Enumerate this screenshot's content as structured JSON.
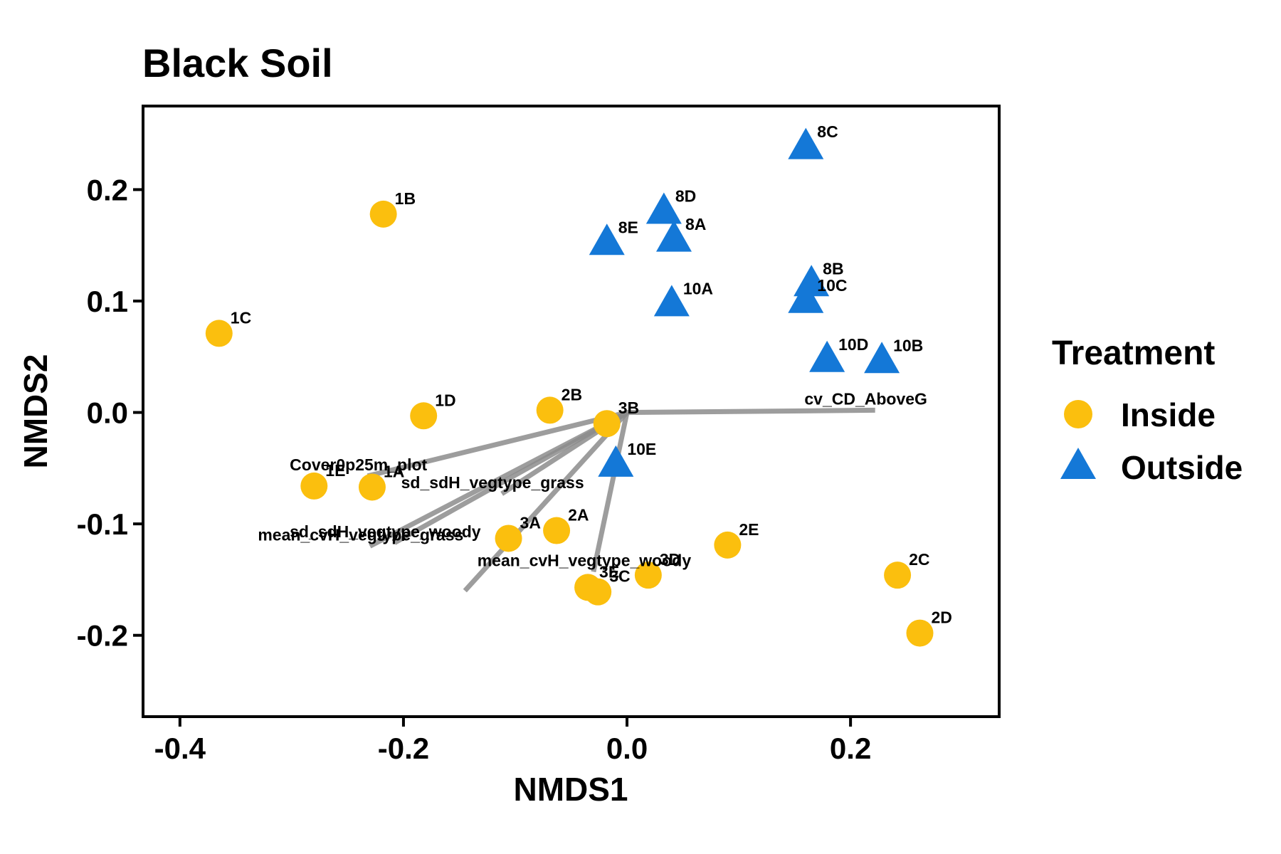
{
  "chart_data": {
    "type": "scatter",
    "title": "Black Soil",
    "xlabel": "NMDS1",
    "ylabel": "NMDS2",
    "xlim": [
      -0.433,
      0.333
    ],
    "ylim": [
      -0.273,
      0.275
    ],
    "xticks": [
      -0.4,
      -0.2,
      0.0,
      0.2
    ],
    "xtick_labels": [
      "-0.4",
      "-0.2",
      "0.0",
      "0.2"
    ],
    "yticks": [
      -0.2,
      -0.1,
      0.0,
      0.1,
      0.2
    ],
    "ytick_labels": [
      "-0.2",
      "-0.1",
      "0.0",
      "0.1",
      "0.2"
    ],
    "grid": false,
    "colors": {
      "Inside": "#FBBF0E",
      "Outside": "#1478D7",
      "vector": "#8C8C8C"
    },
    "legend": {
      "title": "Treatment",
      "position": "right",
      "entries": [
        {
          "label": "Inside",
          "shape": "circle"
        },
        {
          "label": "Outside",
          "shape": "triangle"
        }
      ]
    },
    "series": [
      {
        "name": "Inside",
        "shape": "circle",
        "points": [
          {
            "label": "1B",
            "x": -0.218,
            "y": 0.178
          },
          {
            "label": "1C",
            "x": -0.365,
            "y": 0.071
          },
          {
            "label": "1D",
            "x": -0.182,
            "y": -0.003
          },
          {
            "label": "1E",
            "x": -0.28,
            "y": -0.066
          },
          {
            "label": "1A",
            "x": -0.228,
            "y": -0.067
          },
          {
            "label": "2B",
            "x": -0.069,
            "y": 0.002
          },
          {
            "label": "3B",
            "x": -0.018,
            "y": -0.01
          },
          {
            "label": "3A",
            "x": -0.106,
            "y": -0.113
          },
          {
            "label": "2A",
            "x": -0.063,
            "y": -0.106
          },
          {
            "label": "3D",
            "x": 0.019,
            "y": -0.146
          },
          {
            "label": "3E",
            "x": -0.035,
            "y": -0.157
          },
          {
            "label": "3C",
            "x": -0.026,
            "y": -0.161
          },
          {
            "label": "2E",
            "x": 0.09,
            "y": -0.119
          },
          {
            "label": "2C",
            "x": 0.242,
            "y": -0.146
          },
          {
            "label": "2D",
            "x": 0.262,
            "y": -0.198
          }
        ]
      },
      {
        "name": "Outside",
        "shape": "triangle",
        "points": [
          {
            "label": "8C",
            "x": 0.16,
            "y": 0.238
          },
          {
            "label": "8D",
            "x": 0.033,
            "y": 0.18
          },
          {
            "label": "8E",
            "x": -0.018,
            "y": 0.152
          },
          {
            "label": "8A",
            "x": 0.042,
            "y": 0.155
          },
          {
            "label": "10A",
            "x": 0.04,
            "y": 0.097
          },
          {
            "label": "8B",
            "x": 0.165,
            "y": 0.115
          },
          {
            "label": "10C",
            "x": 0.16,
            "y": 0.1
          },
          {
            "label": "10D",
            "x": 0.179,
            "y": 0.047
          },
          {
            "label": "10B",
            "x": 0.228,
            "y": 0.046
          },
          {
            "label": "10E",
            "x": -0.01,
            "y": -0.047
          }
        ]
      }
    ],
    "vectors": [
      {
        "label": "cv_CD_AboveG",
        "x": 0.222,
        "y": 0.002
      },
      {
        "label": "Cover0p25m_plot",
        "x": -0.232,
        "y": -0.057
      },
      {
        "label": "sd_sdH_vegtype_grass",
        "x": -0.112,
        "y": -0.073
      },
      {
        "label": "sd_sdH_vegtype_woody",
        "x": -0.208,
        "y": -0.117
      },
      {
        "label": "mean_cvH_vegtype_grass",
        "x": -0.23,
        "y": -0.12
      },
      {
        "label": "mean_cvH_vegtype_woody",
        "x": -0.03,
        "y": -0.143
      },
      {
        "label": "",
        "x": -0.145,
        "y": -0.16
      }
    ]
  }
}
